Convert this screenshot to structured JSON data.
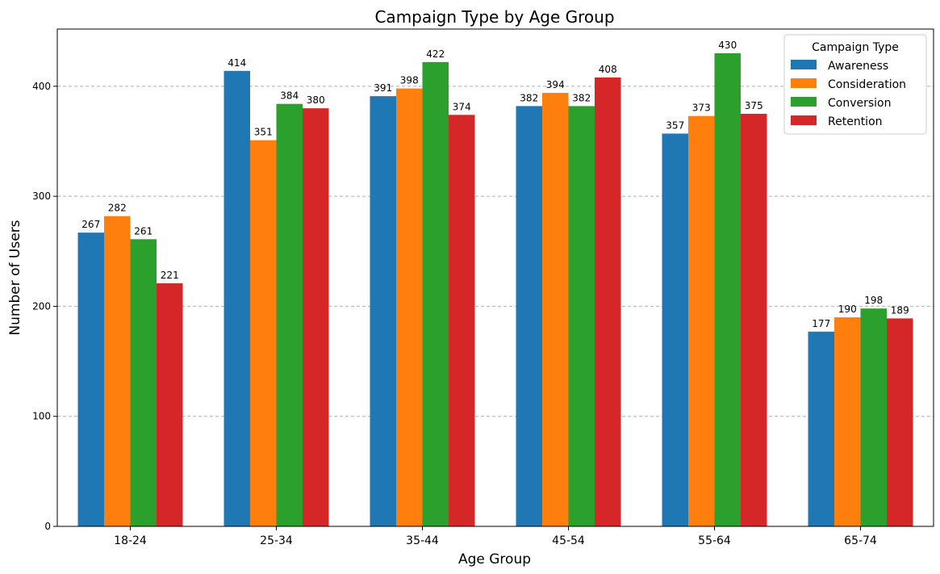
{
  "chart_data": {
    "type": "bar",
    "title": "Campaign Type by Age Group",
    "xlabel": "Age Group",
    "ylabel": "Number of Users",
    "categories": [
      "18-24",
      "25-34",
      "35-44",
      "45-54",
      "55-64",
      "65-74"
    ],
    "series": [
      {
        "name": "Awareness",
        "color": "#1f77b4",
        "values": [
          267,
          414,
          391,
          382,
          357,
          177
        ]
      },
      {
        "name": "Consideration",
        "color": "#ff7f0e",
        "values": [
          282,
          351,
          398,
          394,
          373,
          190
        ]
      },
      {
        "name": "Conversion",
        "color": "#2ca02c",
        "values": [
          261,
          384,
          422,
          382,
          430,
          198
        ]
      },
      {
        "name": "Retention",
        "color": "#d62728",
        "values": [
          221,
          380,
          374,
          408,
          375,
          189
        ]
      }
    ],
    "ylim": [
      0,
      452
    ],
    "yticks": [
      0,
      100,
      200,
      300,
      400
    ],
    "grid": true,
    "legend": {
      "title": "Campaign Type",
      "placement": "top-right"
    }
  }
}
